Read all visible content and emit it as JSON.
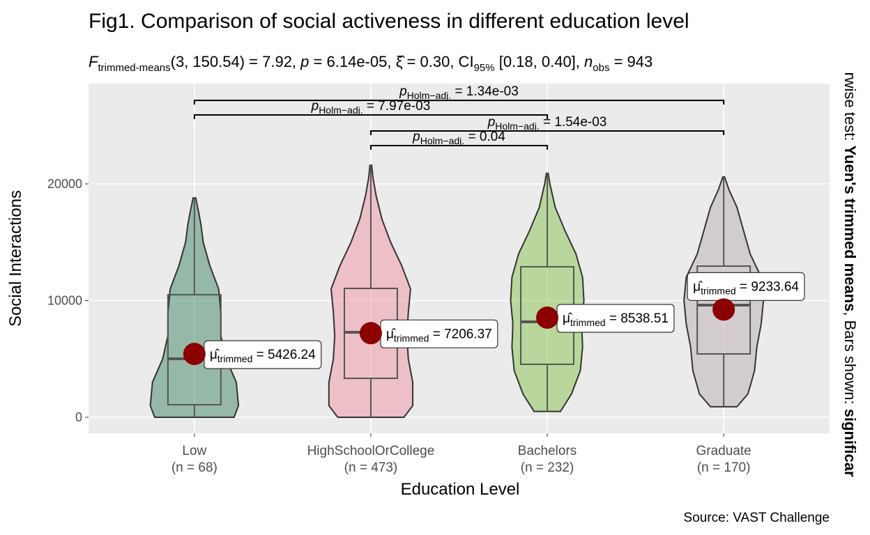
{
  "chart_data": {
    "type": "violin-box",
    "title": "Fig1. Comparison of social activeness in different education level",
    "subtitle": [
      {
        "text": "F",
        "style": "italic"
      },
      {
        "text": "trimmed-means",
        "style": "sub"
      },
      {
        "text": "(3, 150.54) = 7.92, ",
        "style": "normal"
      },
      {
        "text": "p",
        "style": "italic"
      },
      {
        "text": " = 6.14e-05, ",
        "style": "normal"
      },
      {
        "text": "ξ̂",
        "style": "normal"
      },
      {
        "text": " = 0.30, CI",
        "style": "normal"
      },
      {
        "text": "95%",
        "style": "sub"
      },
      {
        "text": " [0.18, 0.40], ",
        "style": "normal"
      },
      {
        "text": "n",
        "style": "italic"
      },
      {
        "text": "obs",
        "style": "sub"
      },
      {
        "text": " = 943",
        "style": "normal"
      }
    ],
    "caption_side": [
      {
        "text": "rwise test: ",
        "style": "normal"
      },
      {
        "text": "Yuen's trimmed means",
        "style": "bold"
      },
      {
        "text": ", Bars shown: ",
        "style": "normal"
      },
      {
        "text": "significar",
        "style": "bold"
      }
    ],
    "caption": "Source: VAST Challenge",
    "x_label": "Education Level",
    "y_label": "Social Interactions",
    "categories": [
      "Low",
      "HighSchoolOrCollege",
      "Bachelors",
      "Graduate"
    ],
    "n_labels": [
      "(n = 68)",
      "(n = 473)",
      "(n = 232)",
      "(n = 170)"
    ],
    "colors": [
      "#2f7a53",
      "#f08a9a",
      "#7dbf3c",
      "#b3a6b0"
    ],
    "ylim": [
      -1373,
      28597
    ],
    "yticks": [
      0,
      10000,
      20000
    ],
    "grid": true,
    "boxes": [
      {
        "min": 0,
        "q1": 1075,
        "median": 5015,
        "q3": 10500,
        "max": 18800
      },
      {
        "min": 0,
        "q1": 3340,
        "median": 7280,
        "q3": 11045,
        "max": 21600
      },
      {
        "min": 500,
        "q1": 4540,
        "median": 8180,
        "q3": 12900,
        "max": 20900
      },
      {
        "min": 900,
        "q1": 5430,
        "median": 9610,
        "q3": 12955,
        "max": 20600
      }
    ],
    "violins": [
      {
        "y": [
          0,
          1000,
          3000,
          5000,
          7000,
          9000,
          11000,
          13000,
          15000,
          16500,
          17500,
          18800
        ],
        "width": [
          0.9,
          1.0,
          0.95,
          0.72,
          0.6,
          0.6,
          0.55,
          0.35,
          0.2,
          0.15,
          0.1,
          0.03
        ]
      },
      {
        "y": [
          0,
          1000,
          3000,
          5000,
          7000,
          9000,
          11000,
          13000,
          15000,
          17000,
          19000,
          20500,
          21600
        ],
        "width": [
          0.75,
          0.95,
          0.95,
          0.85,
          0.82,
          0.85,
          0.9,
          0.7,
          0.45,
          0.25,
          0.12,
          0.05,
          0.02
        ]
      },
      {
        "y": [
          500,
          2000,
          4000,
          6000,
          8000,
          10000,
          12000,
          14000,
          16000,
          18000,
          20000,
          20900
        ],
        "width": [
          0.3,
          0.55,
          0.75,
          0.8,
          0.78,
          0.83,
          0.8,
          0.65,
          0.4,
          0.18,
          0.06,
          0.02
        ]
      },
      {
        "y": [
          900,
          2000,
          4000,
          6000,
          8000,
          10000,
          12000,
          14000,
          16000,
          18000,
          19500,
          20600
        ],
        "width": [
          0.3,
          0.55,
          0.7,
          0.75,
          0.85,
          0.9,
          0.85,
          0.6,
          0.45,
          0.3,
          0.12,
          0.02
        ]
      }
    ],
    "means": [
      5426.24,
      7206.37,
      8538.51,
      9233.64
    ],
    "mean_label": {
      "symbol": "μ̂",
      "sub": "trimmed",
      "eq": " = "
    },
    "mean_color": "#8b0000",
    "pairwise": [
      {
        "from": 0,
        "to": 3,
        "y": 27160,
        "p": "p",
        "sub": "Holm−adj.",
        "text": " = 1.34e-03"
      },
      {
        "from": 0,
        "to": 2,
        "y": 25910,
        "p": "p",
        "sub": "Holm−adj.",
        "text": " = 7.97e-03"
      },
      {
        "from": 1,
        "to": 3,
        "y": 24540,
        "p": "p",
        "sub": "Holm−adj.",
        "text": " = 1.54e-03"
      },
      {
        "from": 1,
        "to": 2,
        "y": 23280,
        "p": "p",
        "sub": "Holm−adj.",
        "text": " = 0.04"
      }
    ]
  }
}
